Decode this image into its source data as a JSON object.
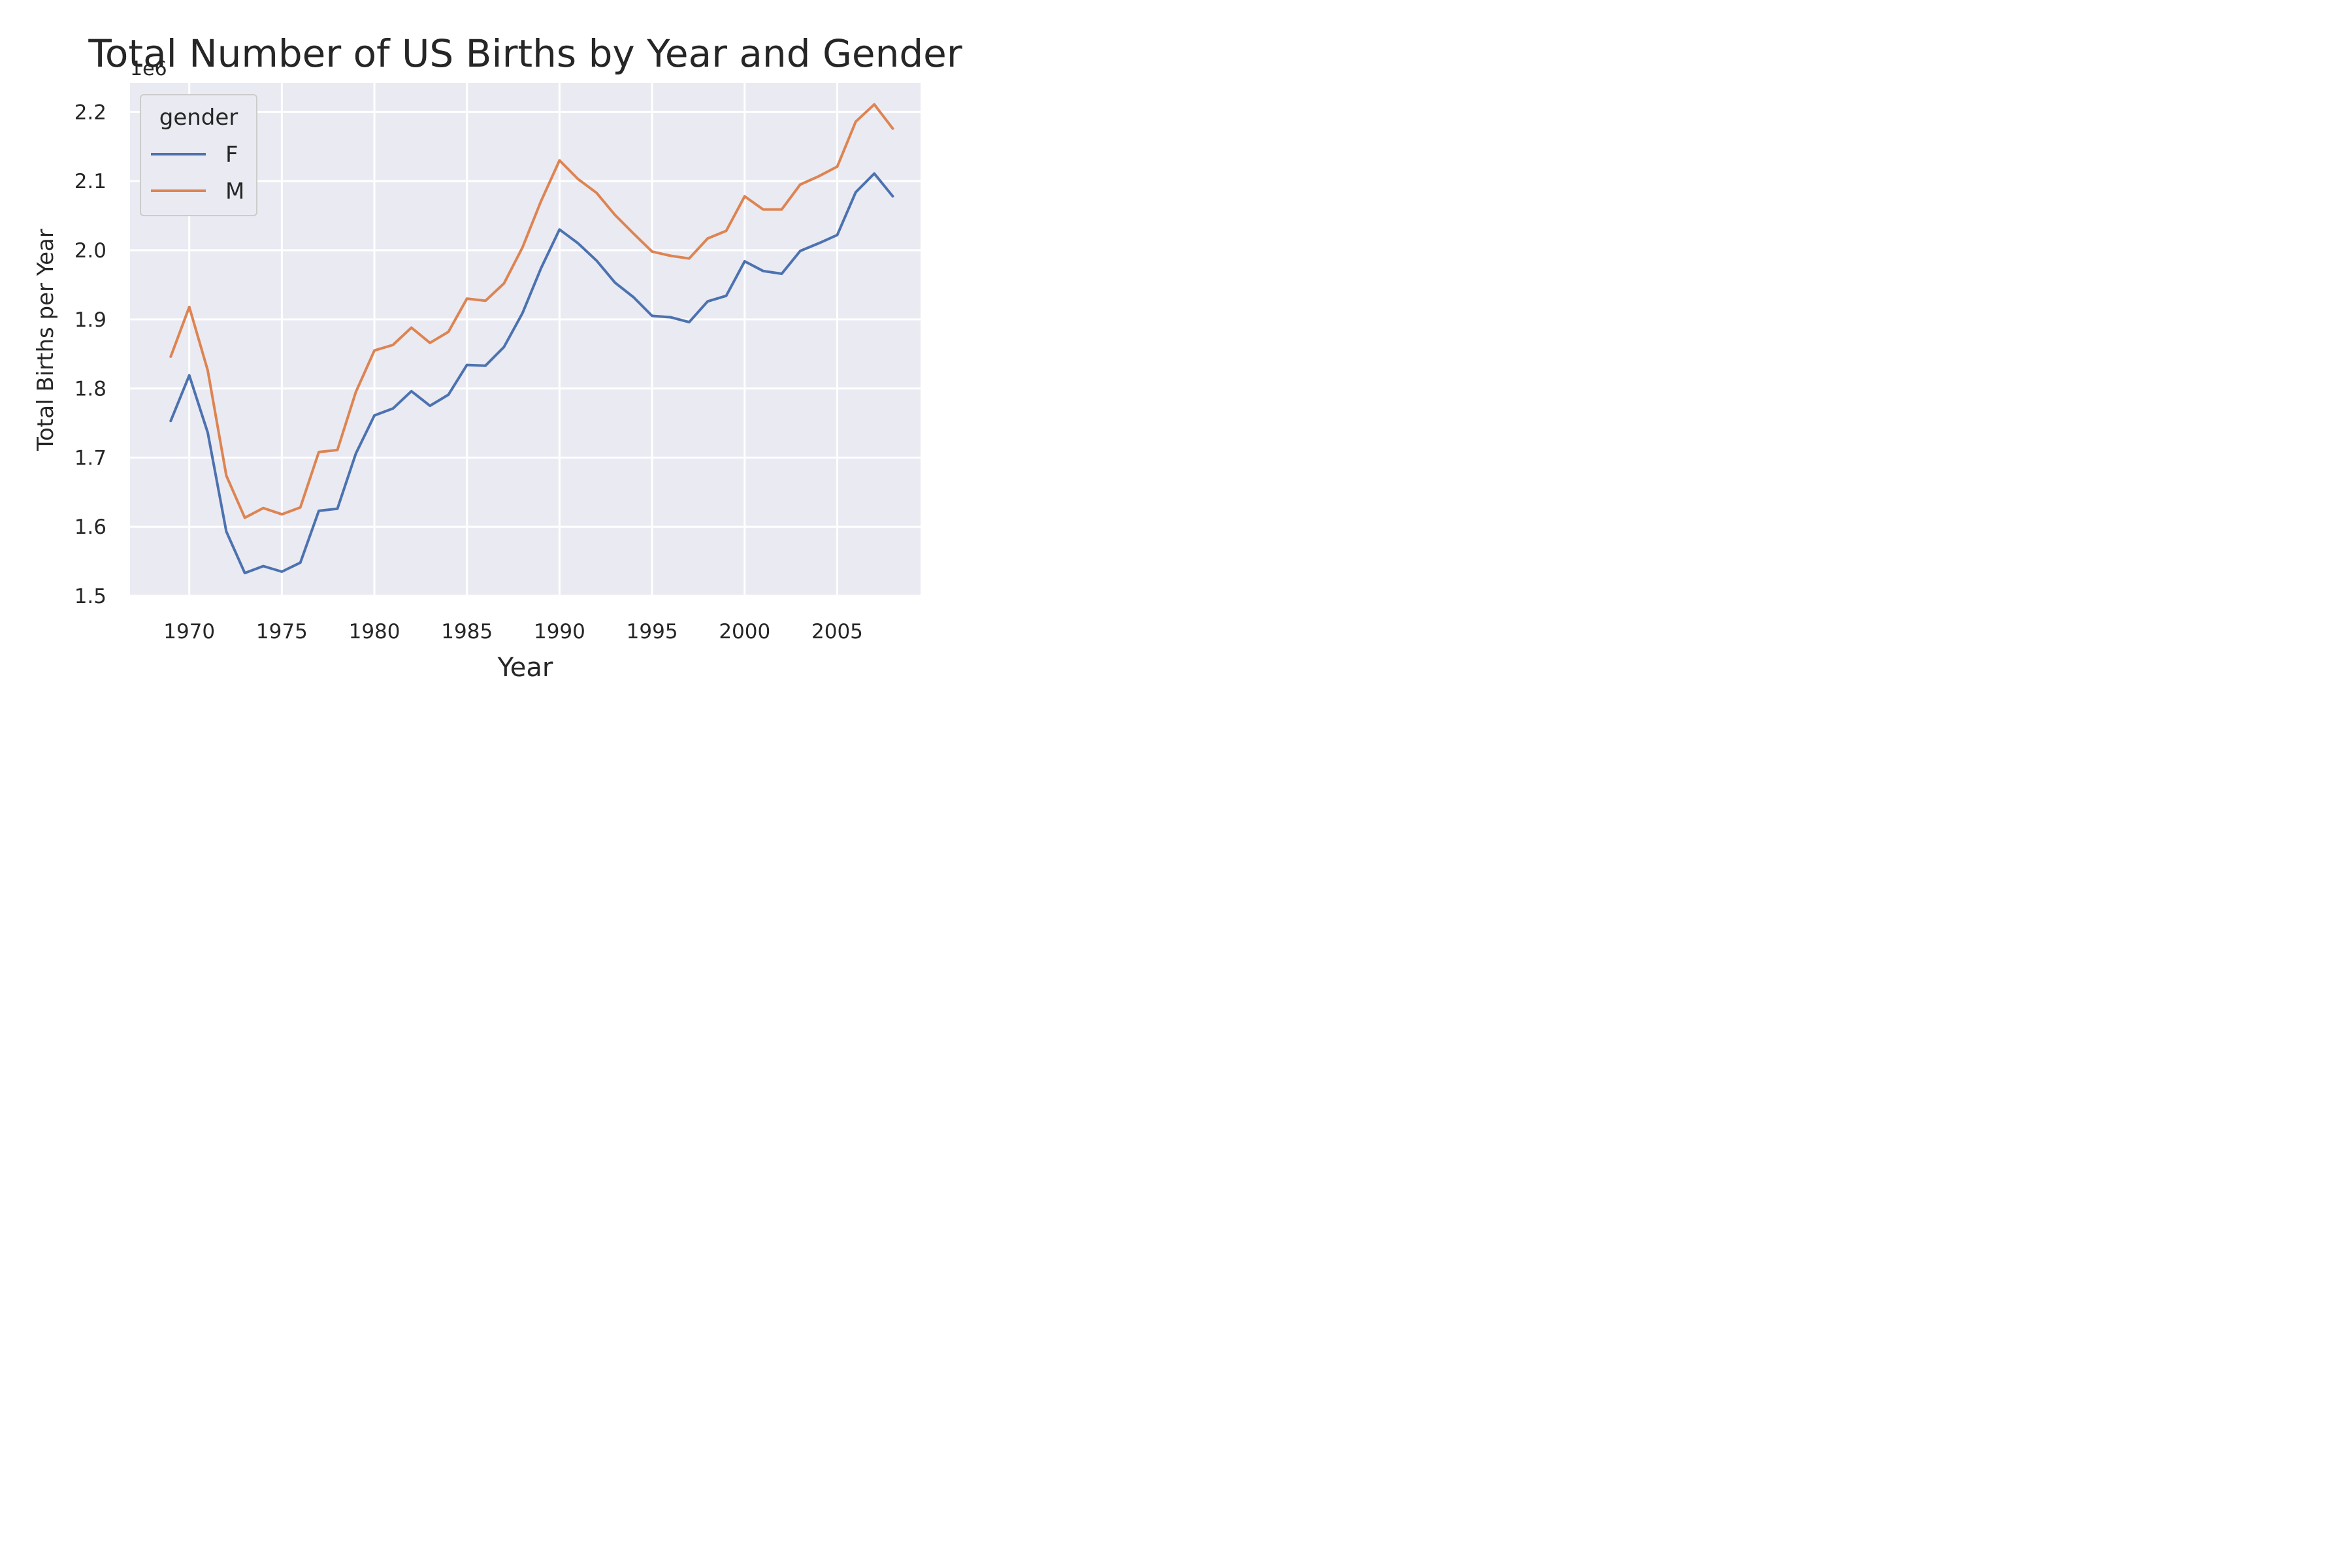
{
  "chart_data": {
    "type": "line",
    "title": "Total Number of US Births by Year and Gender",
    "xlabel": "Year",
    "ylabel": "Total Births per Year",
    "y_offset_label": "1e6",
    "xlim": [
      1966.8,
      2009.5
    ],
    "ylim": [
      1.5,
      2.242
    ],
    "x_ticks": [
      1970,
      1975,
      1980,
      1985,
      1990,
      1995,
      2000,
      2005
    ],
    "y_ticks": [
      1.5,
      1.6,
      1.7,
      1.8,
      1.9,
      2.0,
      2.1,
      2.2
    ],
    "y_tick_labels": [
      "1.5",
      "1.6",
      "1.7",
      "1.8",
      "1.9",
      "2.0",
      "2.1",
      "2.2"
    ],
    "grid": true,
    "legend": {
      "title": "gender",
      "position": "top-left"
    },
    "x": [
      1969,
      1970,
      1971,
      1972,
      1973,
      1974,
      1975,
      1976,
      1977,
      1978,
      1979,
      1980,
      1981,
      1982,
      1983,
      1984,
      1985,
      1986,
      1987,
      1988,
      1989,
      1990,
      1991,
      1992,
      1993,
      1994,
      1995,
      1996,
      1997,
      1998,
      1999,
      2000,
      2001,
      2002,
      2003,
      2004,
      2005,
      2006,
      2007,
      2008
    ],
    "series": [
      {
        "name": "F",
        "color": "#4c72b0",
        "values": [
          1.753,
          1.819,
          1.736,
          1.593,
          1.533,
          1.543,
          1.535,
          1.548,
          1.623,
          1.626,
          1.706,
          1.761,
          1.771,
          1.796,
          1.775,
          1.791,
          1.834,
          1.833,
          1.86,
          1.909,
          1.974,
          2.03,
          2.01,
          1.985,
          1.953,
          1.932,
          1.905,
          1.903,
          1.896,
          1.926,
          1.934,
          1.984,
          1.97,
          1.966,
          1.999,
          2.01,
          2.022,
          2.084,
          2.111,
          2.078
        ]
      },
      {
        "name": "M",
        "color": "#dd8452",
        "values": [
          1.846,
          1.918,
          1.826,
          1.674,
          1.613,
          1.627,
          1.618,
          1.628,
          1.708,
          1.711,
          1.795,
          1.855,
          1.863,
          1.888,
          1.866,
          1.882,
          1.93,
          1.927,
          1.952,
          2.004,
          2.071,
          2.13,
          2.103,
          2.083,
          2.051,
          2.024,
          1.998,
          1.992,
          1.988,
          2.017,
          2.028,
          2.078,
          2.059,
          2.059,
          2.095,
          2.107,
          2.121,
          2.186,
          2.211,
          2.176
        ]
      }
    ]
  }
}
